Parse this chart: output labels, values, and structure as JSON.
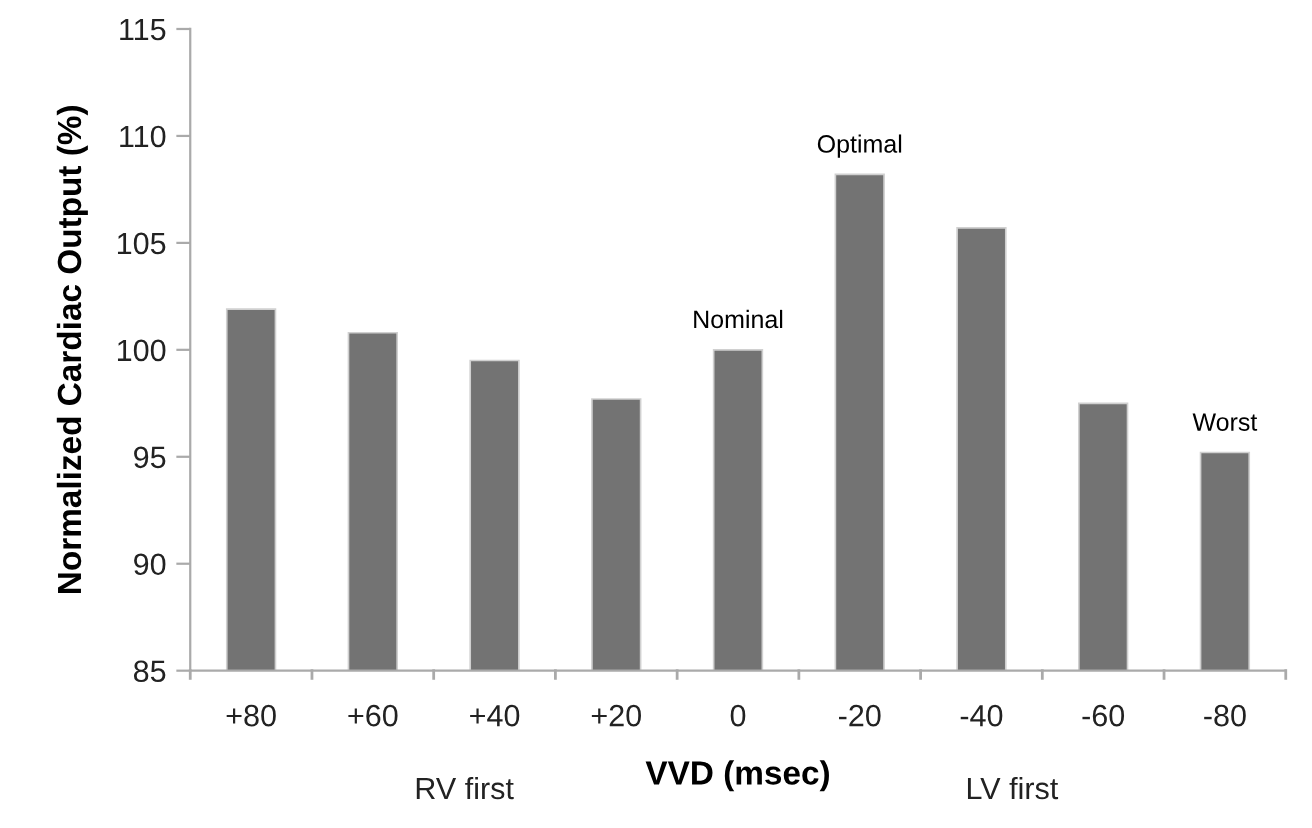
{
  "chart_data": {
    "type": "bar",
    "categories": [
      "+80",
      "+60",
      "+40",
      "+20",
      "0",
      "-20",
      "-40",
      "-60",
      "-80"
    ],
    "values": [
      101.9,
      100.8,
      99.5,
      97.7,
      100.0,
      108.2,
      105.7,
      97.5,
      95.2
    ],
    "color": "#737373",
    "ylim": [
      85,
      115
    ],
    "yticks": [
      85,
      90,
      95,
      100,
      105,
      110,
      115
    ],
    "ylabel": "Normalized Cardiac Output (%)",
    "xlabel": "VVD (msec)",
    "grid": false,
    "legend": false,
    "annotations": [
      {
        "text": "Nominal",
        "x": "0",
        "y": 100.0
      },
      {
        "text": "Optimal",
        "x": "-20",
        "y": 108.2
      },
      {
        "text": "Worst",
        "x": "-80",
        "y": 95.2
      },
      "RV first",
      "LV first"
    ]
  }
}
